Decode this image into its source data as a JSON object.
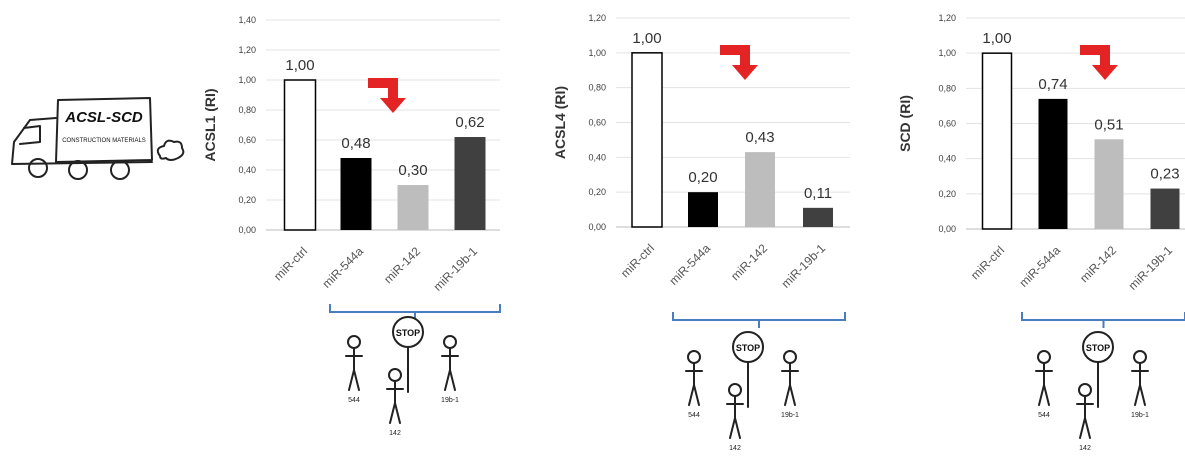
{
  "illustration": {
    "truck_label": "ACSL-SCD",
    "truck_cargo": "CONSTRUCTION MATERIALS",
    "stop_sign": "STOP",
    "worker_labels": [
      "544",
      "142",
      "19b-1"
    ]
  },
  "chart_data": [
    {
      "type": "bar",
      "ylabel": "ACSL1 (RI)",
      "categories": [
        "miR-ctrl",
        "miR-544a",
        "miR-142",
        "miR-19b-1"
      ],
      "values": [
        1.0,
        0.48,
        0.3,
        0.62
      ],
      "value_labels": [
        "1,00",
        "0,48",
        "0,30",
        "0,62"
      ],
      "colors": [
        "#ffffff",
        "#000000",
        "#bdbdbd",
        "#404040"
      ],
      "ylim": [
        0,
        1.4
      ],
      "yticks": [
        {
          "value": 0,
          "label": "0,00"
        },
        {
          "value": 0.2,
          "label": "0,20"
        },
        {
          "value": 0.4,
          "label": "0,40"
        },
        {
          "value": 0.6,
          "label": "0,60"
        },
        {
          "value": 0.8,
          "label": "0,80"
        },
        {
          "value": 1.0,
          "label": "1,00"
        },
        {
          "value": 1.2,
          "label": "1,20"
        },
        {
          "value": 1.4,
          "label": "1,40"
        }
      ],
      "grid": true
    },
    {
      "type": "bar",
      "ylabel": "ACSL4 (RI)",
      "categories": [
        "miR-ctrl",
        "miR-544a",
        "miR-142",
        "miR-19b-1"
      ],
      "values": [
        1.0,
        0.2,
        0.43,
        0.11
      ],
      "value_labels": [
        "1,00",
        "0,20",
        "0,43",
        "0,11"
      ],
      "colors": [
        "#ffffff",
        "#000000",
        "#bdbdbd",
        "#404040"
      ],
      "ylim": [
        0,
        1.2
      ],
      "yticks": [
        {
          "value": 0,
          "label": "0,00"
        },
        {
          "value": 0.2,
          "label": "0,20"
        },
        {
          "value": 0.4,
          "label": "0,40"
        },
        {
          "value": 0.6,
          "label": "0,60"
        },
        {
          "value": 0.8,
          "label": "0,80"
        },
        {
          "value": 1.0,
          "label": "1,00"
        },
        {
          "value": 1.2,
          "label": "1,20"
        }
      ],
      "grid": true
    },
    {
      "type": "bar",
      "ylabel": "SCD (RI)",
      "categories": [
        "miR-ctrl",
        "miR-544a",
        "miR-142",
        "miR-19b-1"
      ],
      "values": [
        1.0,
        0.74,
        0.51,
        0.23
      ],
      "value_labels": [
        "1,00",
        "0,74",
        "0,51",
        "0,23"
      ],
      "colors": [
        "#ffffff",
        "#000000",
        "#bdbdbd",
        "#404040"
      ],
      "ylim": [
        0,
        1.2
      ],
      "yticks": [
        {
          "value": 0,
          "label": "0,00"
        },
        {
          "value": 0.2,
          "label": "0,20"
        },
        {
          "value": 0.4,
          "label": "0,40"
        },
        {
          "value": 0.6,
          "label": "0,60"
        },
        {
          "value": 0.8,
          "label": "0,80"
        },
        {
          "value": 1.0,
          "label": "1,00"
        },
        {
          "value": 1.2,
          "label": "1,20"
        }
      ],
      "grid": true
    }
  ]
}
